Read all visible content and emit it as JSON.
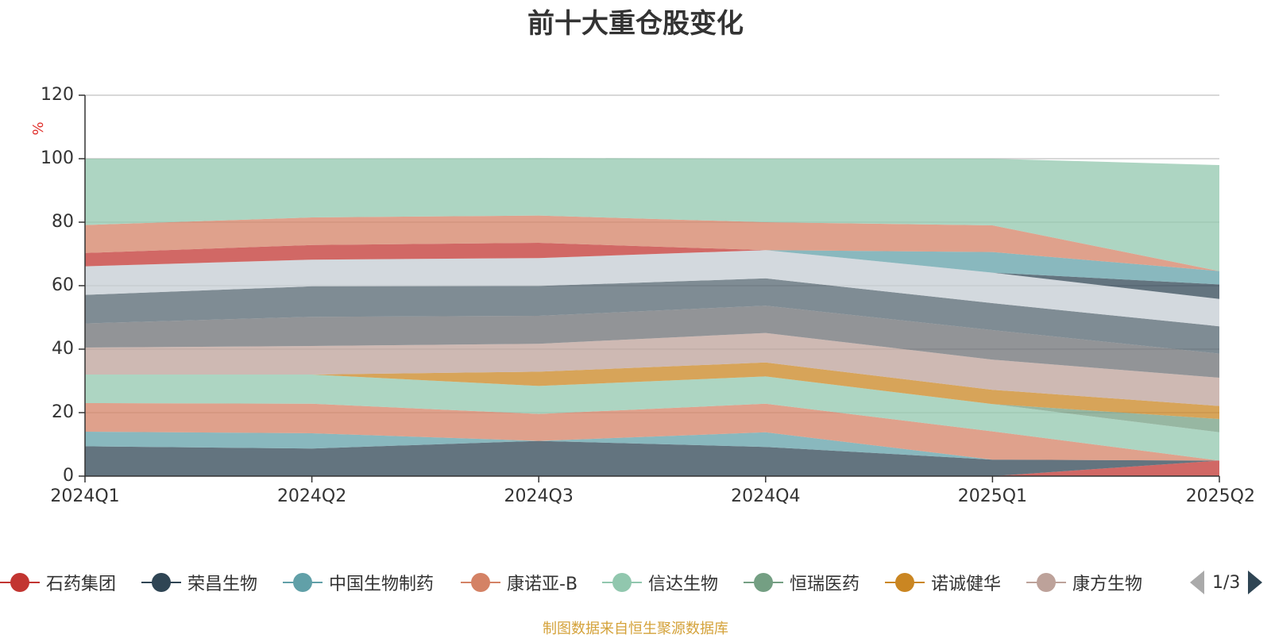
{
  "chart_data": {
    "type": "area",
    "stacked": true,
    "title": "前十大重仓股变化",
    "ylabel": "%",
    "ylim": [
      0,
      120
    ],
    "yticks": [
      0,
      20,
      40,
      60,
      80,
      100,
      120
    ],
    "grid": true,
    "legend_position": "bottom",
    "categories": [
      "2024Q1",
      "2024Q2",
      "2024Q3",
      "2024Q4",
      "2025Q1",
      "2025Q2"
    ],
    "series": [
      {
        "name": "石药集团",
        "color": "#c23531",
        "values": [
          0,
          0,
          0,
          0,
          0,
          4.9
        ]
      },
      {
        "name": "荣昌生物",
        "color": "#2f4554",
        "values": [
          9.4,
          8.7,
          11.1,
          9.2,
          5.2,
          0
        ]
      },
      {
        "name": "中国生物制药",
        "color": "#61a0a8",
        "values": [
          4.6,
          4.8,
          0,
          4.6,
          0,
          0
        ]
      },
      {
        "name": "康诺亚-B",
        "color": "#d48265",
        "values": [
          9.0,
          9.3,
          8.5,
          9.0,
          8.9,
          0
        ]
      },
      {
        "name": "信达生物",
        "color": "#91c7ae",
        "values": [
          9.0,
          9.2,
          8.8,
          8.6,
          8.6,
          8.9
        ]
      },
      {
        "name": "恒瑞医药",
        "color": "#749f83",
        "values": [
          0,
          0,
          0,
          0,
          0,
          4.2
        ]
      },
      {
        "name": "诺诚健华",
        "color": "#ca8622",
        "values": [
          0,
          0,
          4.5,
          4.4,
          4.5,
          4.1
        ]
      },
      {
        "name": "康方生物",
        "color": "#bda29a",
        "values": [
          8.5,
          9.0,
          8.8,
          9.3,
          9.5,
          8.9
        ]
      },
      {
        "name": "",
        "color": "#6e7074",
        "values": [
          7.6,
          9.2,
          8.8,
          8.6,
          9.3,
          7.6
        ]
      },
      {
        "name": "",
        "color": "#546570",
        "values": [
          9.0,
          9.6,
          9.4,
          8.6,
          8.5,
          8.6
        ]
      },
      {
        "name": "",
        "color": "#c4ccd3",
        "values": [
          9.0,
          8.4,
          8.8,
          8.9,
          9.6,
          8.6
        ]
      },
      {
        "name": "",
        "color": "#2f4554",
        "values": [
          0,
          0,
          0,
          0,
          0,
          4.6
        ]
      },
      {
        "name": "",
        "color": "#61a0a8",
        "values": [
          0,
          0,
          0,
          0,
          6.5,
          4.2
        ]
      },
      {
        "name": "",
        "color": "#c23531",
        "values": [
          4.2,
          4.6,
          4.8,
          0,
          0,
          0
        ]
      },
      {
        "name": "",
        "color": "#d48265",
        "values": [
          8.8,
          8.7,
          8.6,
          8.8,
          8.4,
          0
        ]
      },
      {
        "name": "",
        "color": "#91c7ae",
        "values": [
          20.9,
          18.5,
          18.1,
          20.0,
          21.0,
          33.4
        ]
      }
    ]
  },
  "legend": {
    "page_indicator": "1/3",
    "items": [
      {
        "label": "石药集团",
        "color": "#c23531"
      },
      {
        "label": "荣昌生物",
        "color": "#2f4554"
      },
      {
        "label": "中国生物制药",
        "color": "#61a0a8"
      },
      {
        "label": "康诺亚-B",
        "color": "#d48265"
      },
      {
        "label": "信达生物",
        "color": "#91c7ae"
      },
      {
        "label": "恒瑞医药",
        "color": "#749f83"
      },
      {
        "label": "诺诚健华",
        "color": "#ca8622"
      },
      {
        "label": "康方生物",
        "color": "#bda29a"
      }
    ]
  },
  "source": "制图数据来自恒生聚源数据库"
}
